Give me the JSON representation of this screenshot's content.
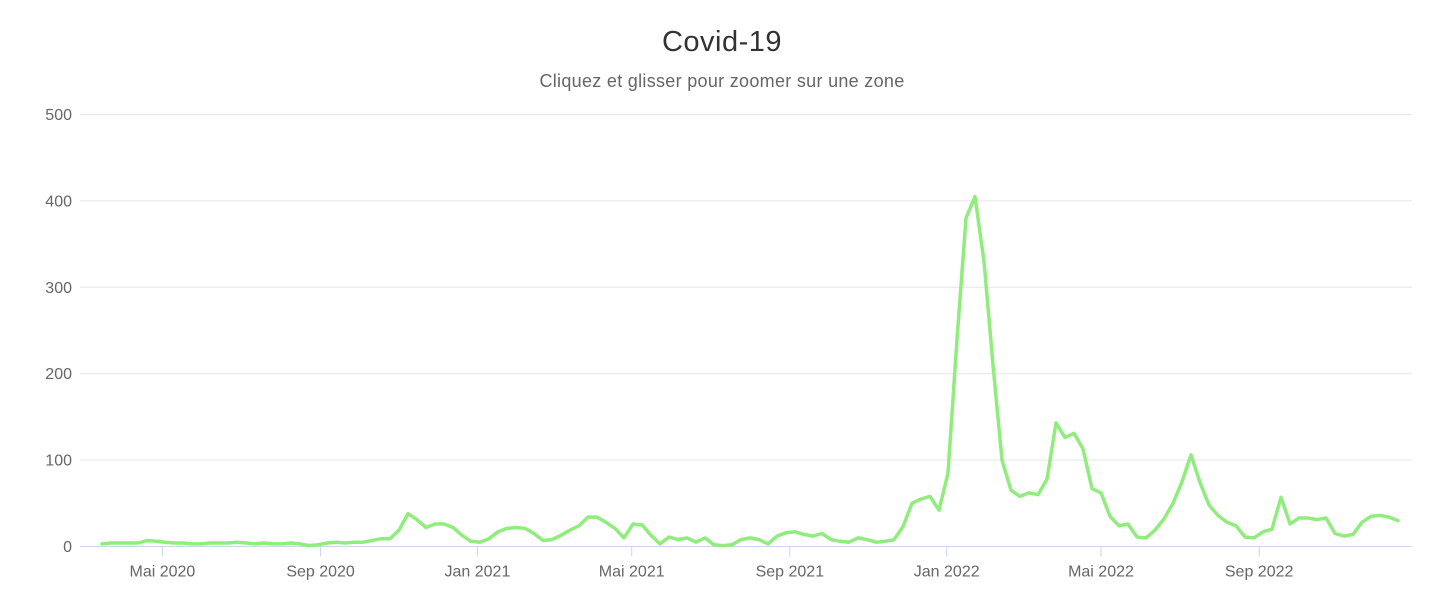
{
  "chart": {
    "colors": {
      "series_line": "#90ed7d",
      "gridline": "#e6e6e6",
      "axis_line": "#ccd6eb",
      "title_text": "#333333",
      "label_text": "#666666",
      "background": "#ffffff"
    }
  },
  "chart_data": {
    "type": "line",
    "title": "Covid-19",
    "subtitle": "Cliquez et glisser pour zoomer sur une zone",
    "xlabel": "",
    "ylabel": "",
    "ylim": [
      0,
      500
    ],
    "y_ticks": [
      0,
      100,
      200,
      300,
      400,
      500
    ],
    "x_ticks": [
      {
        "label": "Mai 2020",
        "date": "2020-05-01"
      },
      {
        "label": "Sep 2020",
        "date": "2020-09-01"
      },
      {
        "label": "Jan 2021",
        "date": "2021-01-01"
      },
      {
        "label": "Mai 2021",
        "date": "2021-05-01"
      },
      {
        "label": "Sep 2021",
        "date": "2021-09-01"
      },
      {
        "label": "Jan 2022",
        "date": "2022-01-01"
      },
      {
        "label": "Mai 2022",
        "date": "2022-05-01"
      },
      {
        "label": "Sep 2022",
        "date": "2022-09-01"
      }
    ],
    "grid": true,
    "legend_position": "none",
    "series": [
      {
        "name": "Covid-19",
        "color": "#90ed7d",
        "start_date": "2020-03-15",
        "interval_days": 7,
        "values": [
          3,
          4,
          4,
          4,
          4,
          7,
          6,
          5,
          4,
          4,
          3,
          3,
          4,
          4,
          4,
          5,
          4,
          3,
          4,
          3,
          3,
          4,
          3,
          1,
          2,
          4,
          5,
          4,
          5,
          5,
          7,
          9,
          9,
          19,
          38,
          31,
          22,
          26,
          26,
          22,
          13,
          6,
          5,
          9,
          17,
          21,
          22,
          21,
          15,
          7,
          8,
          13,
          19,
          24,
          34,
          34,
          28,
          21,
          10,
          26,
          25,
          13,
          3,
          11,
          8,
          10,
          5,
          10,
          2,
          1,
          2,
          8,
          10,
          8,
          3,
          12,
          16,
          17,
          14,
          12,
          15,
          8,
          6,
          5,
          10,
          8,
          5,
          6,
          8,
          23,
          50,
          55,
          58,
          42,
          85,
          240,
          380,
          405,
          330,
          210,
          100,
          65,
          58,
          62,
          60,
          78,
          143,
          126,
          131,
          113,
          67,
          62,
          35,
          24,
          26,
          11,
          10,
          19,
          32,
          50,
          75,
          106,
          74,
          48,
          36,
          28,
          24,
          11,
          10,
          17,
          20,
          57,
          26,
          33,
          33,
          31,
          33,
          15,
          12,
          14,
          28,
          35,
          36,
          34,
          30
        ]
      }
    ]
  }
}
